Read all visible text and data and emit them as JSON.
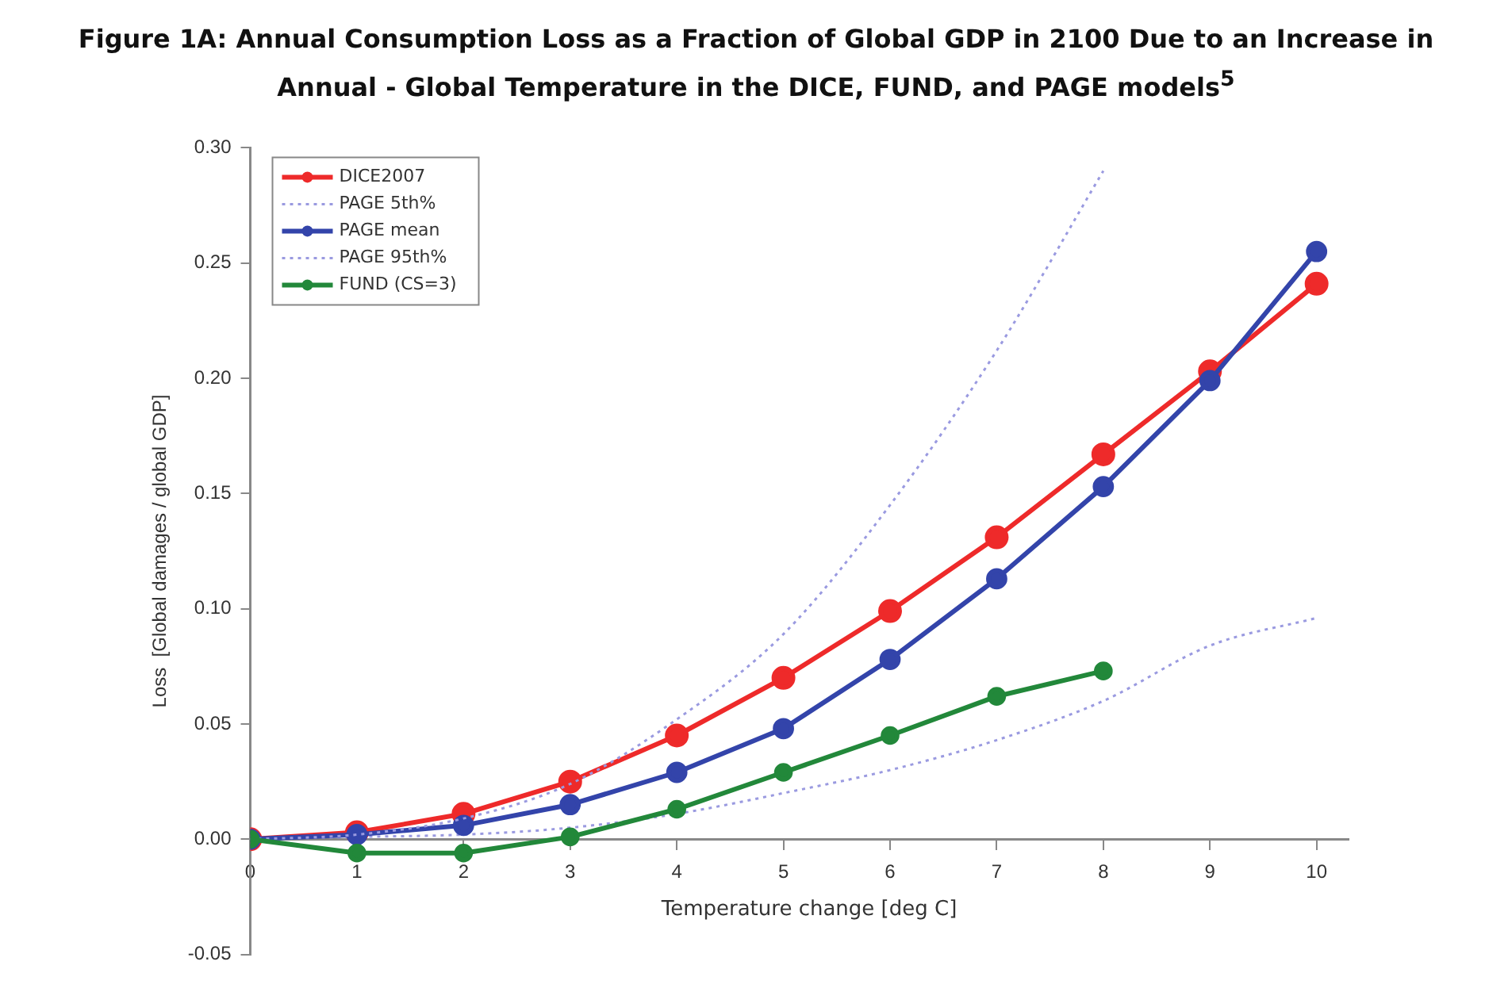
{
  "chart_data": {
    "type": "line",
    "title": "Figure 1A: Annual Consumption Loss as a Fraction of Global GDP in 2100 Due to an Increase in Annual - Global Temperature in the DICE, FUND, and PAGE models$^{5}$",
    "xlabel": "Temperature change [deg C]",
    "ylabel": "Loss  [Global damages / global GDP]",
    "x": [
      0,
      1,
      2,
      3,
      4,
      5,
      6,
      7,
      8,
      9,
      10
    ],
    "series": [
      {
        "name": "DICE2007",
        "color": "#ee2a2a",
        "marker": "circle",
        "line_style": "solid",
        "values": [
          0,
          0.003,
          0.011,
          0.025,
          0.045,
          0.07,
          0.099,
          0.131,
          0.167,
          0.203,
          0.241
        ]
      },
      {
        "name": "PAGE 5th%",
        "color": "#9a9ae0",
        "marker": "none",
        "line_style": "dotted",
        "values": [
          0,
          0.001,
          0.002,
          0.005,
          0.011,
          0.02,
          0.03,
          0.043,
          0.06,
          0.084,
          0.096
        ]
      },
      {
        "name": "PAGE mean",
        "color": "#3344aa",
        "marker": "circle",
        "line_style": "solid",
        "values": [
          0,
          0.002,
          0.006,
          0.015,
          0.029,
          0.048,
          0.078,
          0.113,
          0.153,
          0.199,
          0.255
        ]
      },
      {
        "name": "PAGE 95th%",
        "color": "#9a9ae0",
        "marker": "none",
        "line_style": "dotted",
        "values": [
          0,
          0.002,
          0.009,
          0.024,
          0.052,
          0.089,
          0.145,
          0.212,
          0.29,
          null,
          null
        ]
      },
      {
        "name": "FUND (CS=3)",
        "color": "#22883a",
        "marker": "circle",
        "line_style": "solid",
        "values": [
          0,
          -0.006,
          -0.006,
          0.001,
          0.013,
          0.029,
          0.045,
          0.062,
          0.073,
          null,
          null
        ]
      }
    ],
    "xlim": [
      0,
      10.3
    ],
    "xticks": [
      0,
      1,
      2,
      3,
      4,
      5,
      6,
      7,
      8,
      9,
      10
    ],
    "ylim": [
      -0.05,
      0.3
    ],
    "yticks": [
      {
        "value": -0.05,
        "label": "-0.05"
      },
      {
        "value": 0,
        "label": "0.00"
      },
      {
        "value": 0.05,
        "label": "0.05"
      },
      {
        "value": 0.1,
        "label": "0.10"
      },
      {
        "value": 0.15,
        "label": "0.15"
      },
      {
        "value": 0.2,
        "label": "0.20"
      },
      {
        "value": 0.25,
        "label": "0.25"
      },
      {
        "value": 0.3,
        "label": "0.30"
      }
    ],
    "grid": false,
    "legend": "top left"
  }
}
